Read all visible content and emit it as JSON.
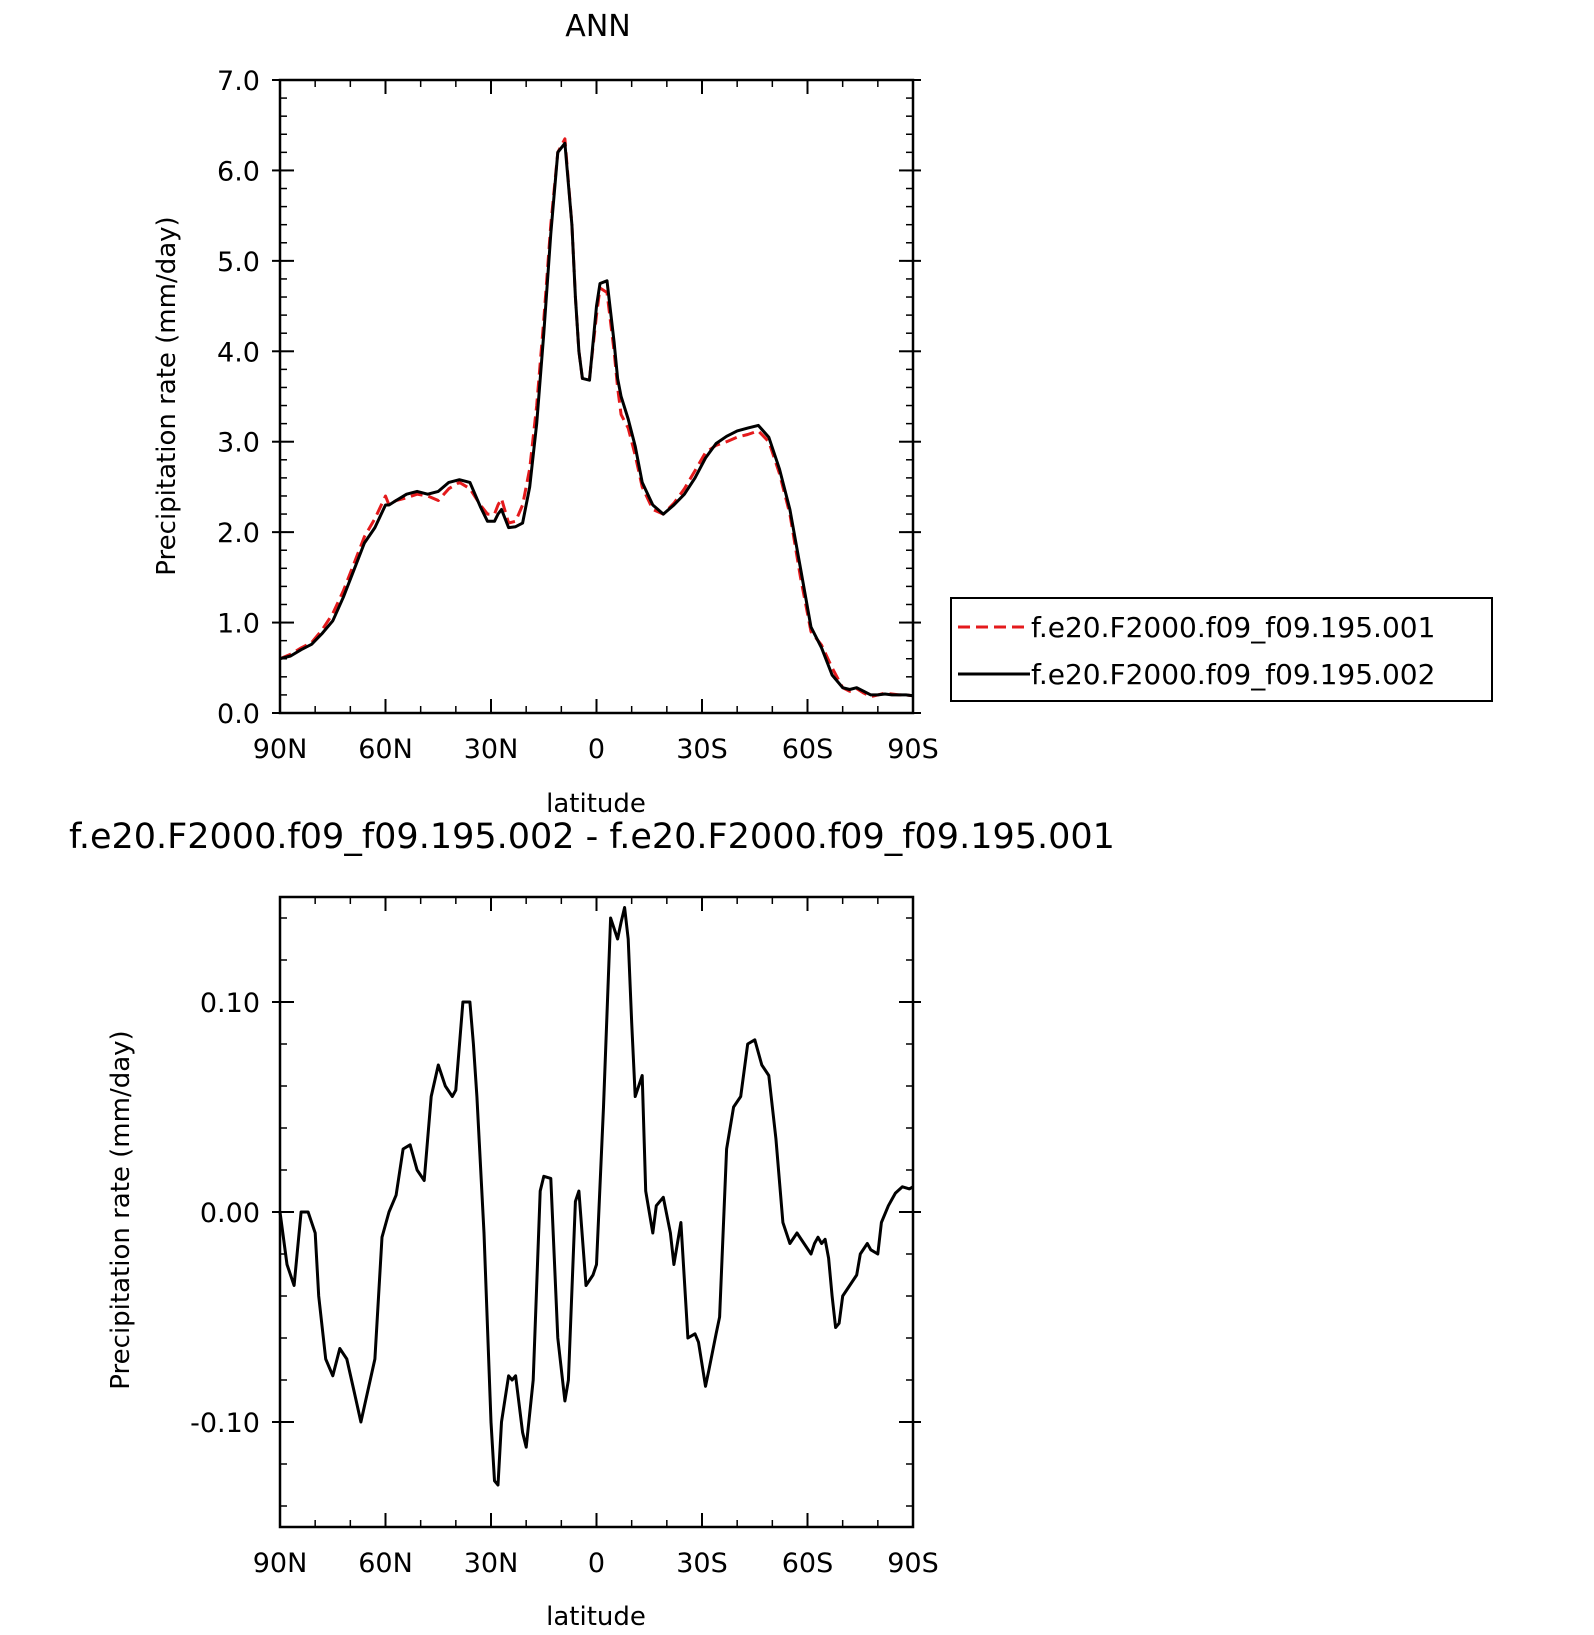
{
  "chart_data": [
    {
      "type": "line",
      "title": "ANN",
      "xlabel": "latitude",
      "ylabel": "Precipitation rate (mm/day)",
      "xlim": [
        90,
        -90
      ],
      "ylim": [
        0,
        7
      ],
      "xticks": [
        90,
        60,
        30,
        0,
        -30,
        -60,
        -90
      ],
      "xtick_labels": [
        "90N",
        "60N",
        "30N",
        "0",
        "30S",
        "60S",
        "90S"
      ],
      "yticks": [
        0,
        1,
        2,
        3,
        4,
        5,
        6,
        7
      ],
      "ytick_labels": [
        "0.0",
        "1.0",
        "2.0",
        "3.0",
        "4.0",
        "5.0",
        "6.0",
        "7.0"
      ],
      "legend_position": "right",
      "series": [
        {
          "name": "f.e20.F2000.f09_f09.195.001",
          "color": "#e41a1c",
          "dash": "dashed",
          "x": [
            90,
            87,
            84,
            81,
            78,
            75,
            72,
            69,
            66,
            63,
            60,
            59,
            57,
            54,
            51,
            48,
            45,
            42,
            39,
            36,
            33,
            31,
            29,
            28,
            27,
            25,
            23,
            21,
            19,
            17,
            15,
            13,
            11,
            9,
            7,
            6,
            5,
            4,
            2,
            0,
            -1,
            -3,
            -5,
            -6,
            -7,
            -9,
            -11,
            -13,
            -16,
            -19,
            -22,
            -25,
            -28,
            -31,
            -34,
            -37,
            -40,
            -43,
            -46,
            -49,
            -52,
            -55,
            -58,
            -61,
            -64,
            -67,
            -70,
            -72,
            -74,
            -76,
            -78,
            -80,
            -82,
            -84,
            -86,
            -88,
            -90
          ],
          "y": [
            0.6,
            0.65,
            0.72,
            0.78,
            0.92,
            1.1,
            1.35,
            1.65,
            1.95,
            2.15,
            2.4,
            2.3,
            2.35,
            2.38,
            2.42,
            2.4,
            2.35,
            2.48,
            2.55,
            2.48,
            2.3,
            2.2,
            2.2,
            2.3,
            2.37,
            2.1,
            2.12,
            2.3,
            2.7,
            3.4,
            4.35,
            5.4,
            6.2,
            6.35,
            5.4,
            4.6,
            4.0,
            3.7,
            3.7,
            4.4,
            4.7,
            4.65,
            4.0,
            3.6,
            3.3,
            3.15,
            2.85,
            2.5,
            2.25,
            2.2,
            2.32,
            2.48,
            2.68,
            2.88,
            2.96,
            3.0,
            3.05,
            3.08,
            3.12,
            3.0,
            2.65,
            2.2,
            1.5,
            0.9,
            0.75,
            0.5,
            0.28,
            0.24,
            0.27,
            0.22,
            0.18,
            0.2,
            0.22,
            0.21,
            0.2,
            0.2,
            0.19
          ]
        },
        {
          "name": "f.e20.F2000.f09_f09.195.002",
          "color": "#000000",
          "dash": "solid",
          "x": [
            90,
            87,
            84,
            81,
            78,
            75,
            72,
            69,
            66,
            63,
            60,
            59,
            57,
            54,
            51,
            48,
            45,
            42,
            39,
            36,
            33,
            31,
            29,
            28,
            27,
            25,
            23,
            21,
            19,
            17,
            15,
            13,
            11,
            9,
            7,
            6,
            5,
            4,
            2,
            0,
            -1,
            -3,
            -5,
            -6,
            -7,
            -9,
            -11,
            -13,
            -16,
            -19,
            -22,
            -25,
            -28,
            -31,
            -34,
            -37,
            -40,
            -43,
            -46,
            -49,
            -52,
            -55,
            -58,
            -61,
            -64,
            -67,
            -70,
            -72,
            -74,
            -76,
            -78,
            -80,
            -82,
            -84,
            -86,
            -88,
            -90
          ],
          "y": [
            0.6,
            0.63,
            0.7,
            0.76,
            0.88,
            1.02,
            1.28,
            1.58,
            1.88,
            2.05,
            2.3,
            2.3,
            2.35,
            2.42,
            2.45,
            2.42,
            2.45,
            2.55,
            2.58,
            2.55,
            2.28,
            2.12,
            2.12,
            2.2,
            2.25,
            2.05,
            2.06,
            2.1,
            2.5,
            3.2,
            4.2,
            5.3,
            6.2,
            6.3,
            5.4,
            4.6,
            4.0,
            3.7,
            3.68,
            4.5,
            4.75,
            4.78,
            4.1,
            3.7,
            3.5,
            3.25,
            2.95,
            2.55,
            2.3,
            2.2,
            2.3,
            2.42,
            2.6,
            2.82,
            2.98,
            3.06,
            3.12,
            3.15,
            3.18,
            3.05,
            2.7,
            2.25,
            1.6,
            0.95,
            0.72,
            0.42,
            0.28,
            0.26,
            0.28,
            0.24,
            0.2,
            0.2,
            0.21,
            0.2,
            0.2,
            0.2,
            0.19
          ]
        }
      ]
    },
    {
      "type": "line",
      "title": "f.e20.F2000.f09_f09.195.002 - f.e20.F2000.f09_f09.195.001",
      "xlabel": "latitude",
      "ylabel": "Precipitation rate (mm/day)",
      "xlim": [
        90,
        -90
      ],
      "ylim": [
        -0.15,
        0.15
      ],
      "xticks": [
        90,
        60,
        30,
        0,
        -30,
        -60,
        -90
      ],
      "xtick_labels": [
        "90N",
        "60N",
        "30N",
        "0",
        "30S",
        "60S",
        "90S"
      ],
      "yticks": [
        -0.1,
        0,
        0.1
      ],
      "ytick_labels": [
        "-0.10",
        "0.00",
        "0.10"
      ],
      "series": [
        {
          "color": "#000000",
          "dash": "solid",
          "x": [
            90,
            88,
            86,
            84,
            82,
            80,
            79,
            77,
            75,
            73,
            71,
            69,
            67,
            65,
            63,
            61,
            59,
            57,
            55,
            53,
            51,
            49,
            47,
            45,
            43,
            41,
            40,
            38,
            36,
            35,
            34,
            32,
            30,
            29,
            28,
            27,
            25,
            24,
            23,
            21,
            20,
            18,
            16,
            15,
            13,
            11,
            9,
            8,
            6,
            5,
            3,
            1,
            0,
            -2,
            -4,
            -6,
            -7,
            -8,
            -9,
            -10,
            -11,
            -13,
            -14,
            -16,
            -17,
            -19,
            -21,
            -22,
            -24,
            -26,
            -28,
            -29,
            -31,
            -32,
            -34,
            -35,
            -37,
            -39,
            -41,
            -43,
            -45,
            -47,
            -49,
            -51,
            -53,
            -55,
            -57,
            -59,
            -61,
            -62,
            -63,
            -64,
            -65,
            -66,
            -67,
            -68,
            -69,
            -70,
            -72,
            -74,
            -75,
            -77,
            -78,
            -80,
            -81,
            -83,
            -85,
            -87,
            -89,
            -90
          ],
          "y": [
            0.0,
            -0.025,
            -0.035,
            0.0,
            0.0,
            -0.01,
            -0.04,
            -0.07,
            -0.078,
            -0.065,
            -0.07,
            -0.085,
            -0.1,
            -0.085,
            -0.07,
            -0.012,
            0.0,
            0.008,
            0.03,
            0.032,
            0.02,
            0.015,
            0.055,
            0.07,
            0.06,
            0.055,
            0.058,
            0.1,
            0.1,
            0.08,
            0.055,
            -0.01,
            -0.1,
            -0.128,
            -0.13,
            -0.1,
            -0.078,
            -0.08,
            -0.078,
            -0.105,
            -0.112,
            -0.08,
            0.01,
            0.017,
            0.016,
            -0.06,
            -0.09,
            -0.08,
            0.005,
            0.01,
            -0.035,
            -0.03,
            -0.025,
            0.05,
            0.14,
            0.13,
            0.138,
            0.145,
            0.13,
            0.09,
            0.055,
            0.065,
            0.01,
            -0.01,
            0.003,
            0.007,
            -0.01,
            -0.025,
            -0.005,
            -0.06,
            -0.058,
            -0.062,
            -0.083,
            -0.075,
            -0.058,
            -0.05,
            0.03,
            0.05,
            0.055,
            0.08,
            0.082,
            0.07,
            0.065,
            0.035,
            -0.005,
            -0.015,
            -0.01,
            -0.015,
            -0.02,
            -0.015,
            -0.012,
            -0.015,
            -0.013,
            -0.022,
            -0.04,
            -0.055,
            -0.053,
            -0.04,
            -0.035,
            -0.03,
            -0.02,
            -0.015,
            -0.018,
            -0.02,
            -0.005,
            0.003,
            0.009,
            0.012,
            0.011,
            0.012
          ]
        }
      ]
    }
  ]
}
